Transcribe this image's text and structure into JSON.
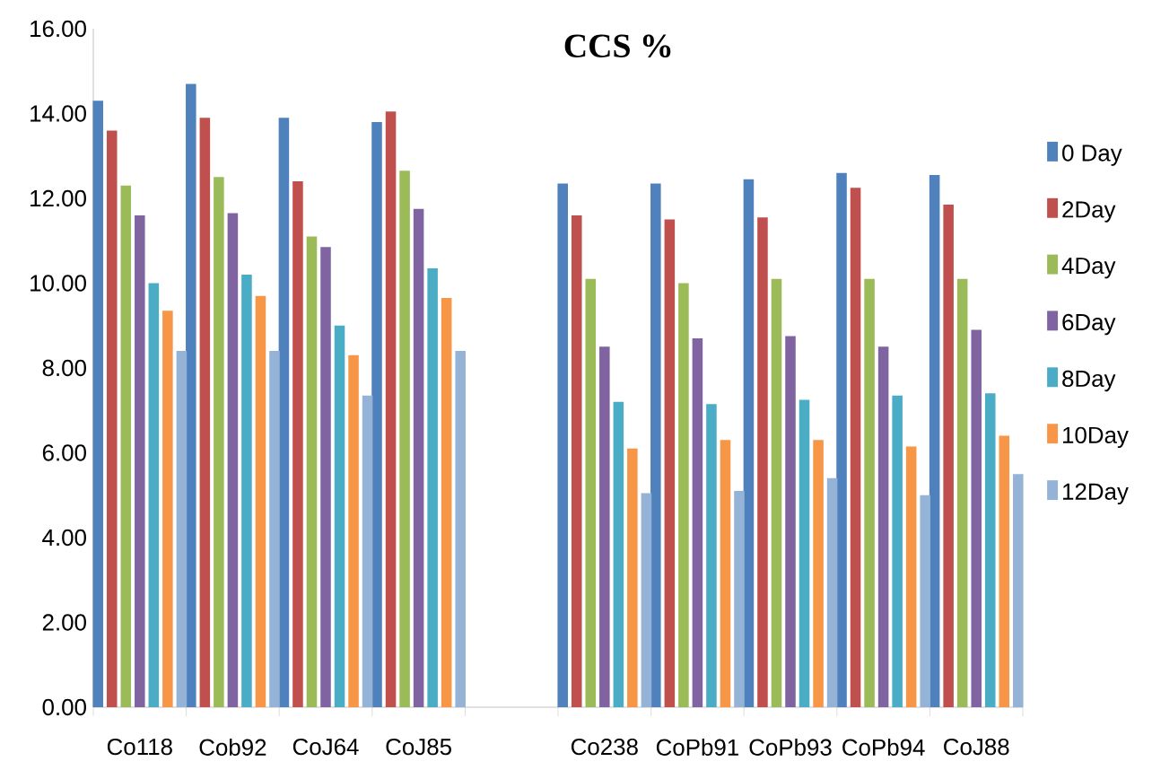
{
  "chart_data": {
    "type": "bar",
    "title": "CCS %",
    "categories": [
      "Co118",
      "Cob92",
      "CoJ64",
      "CoJ85",
      null,
      "Co238",
      "CoPb91",
      "CoPb93",
      "CoPb94",
      "CoJ88"
    ],
    "series": [
      {
        "name": "0 Day",
        "color": "#4f81bd",
        "values": [
          14.3,
          14.7,
          13.9,
          13.8,
          null,
          12.35,
          12.35,
          12.45,
          12.6,
          12.55
        ]
      },
      {
        "name": "2Day",
        "color": "#c0504d",
        "values": [
          13.6,
          13.9,
          12.4,
          14.05,
          null,
          11.6,
          11.5,
          11.55,
          12.25,
          11.85
        ]
      },
      {
        "name": "4Day",
        "color": "#9bbb59",
        "values": [
          12.3,
          12.5,
          11.1,
          12.65,
          null,
          10.1,
          10.0,
          10.1,
          10.1,
          10.1
        ]
      },
      {
        "name": "6Day",
        "color": "#8064a2",
        "values": [
          11.6,
          11.65,
          10.85,
          11.75,
          null,
          8.5,
          8.7,
          8.75,
          8.5,
          8.9
        ]
      },
      {
        "name": "8Day",
        "color": "#4bacc6",
        "values": [
          10.0,
          10.2,
          9.0,
          10.35,
          null,
          7.2,
          7.15,
          7.25,
          7.35,
          7.4
        ]
      },
      {
        "name": "10Day",
        "color": "#f79646",
        "values": [
          9.35,
          9.7,
          8.3,
          9.65,
          null,
          6.1,
          6.3,
          6.3,
          6.15,
          6.4
        ]
      },
      {
        "name": "12Day",
        "color": "#95b3d7",
        "values": [
          8.4,
          8.4,
          7.35,
          8.4,
          null,
          5.05,
          5.1,
          5.4,
          5.0,
          5.5
        ]
      }
    ],
    "ylim": [
      0,
      16
    ],
    "yticks": [
      {
        "value": 0,
        "label": "0.00"
      },
      {
        "value": 2,
        "label": "2.00"
      },
      {
        "value": 4,
        "label": "4.00"
      },
      {
        "value": 6,
        "label": "6.00"
      },
      {
        "value": 8,
        "label": "8.00"
      },
      {
        "value": 10,
        "label": "10.00"
      },
      {
        "value": 12,
        "label": "12.00"
      },
      {
        "value": 14,
        "label": "14.00"
      },
      {
        "value": 16,
        "label": "16.00"
      }
    ],
    "legend": "right"
  }
}
